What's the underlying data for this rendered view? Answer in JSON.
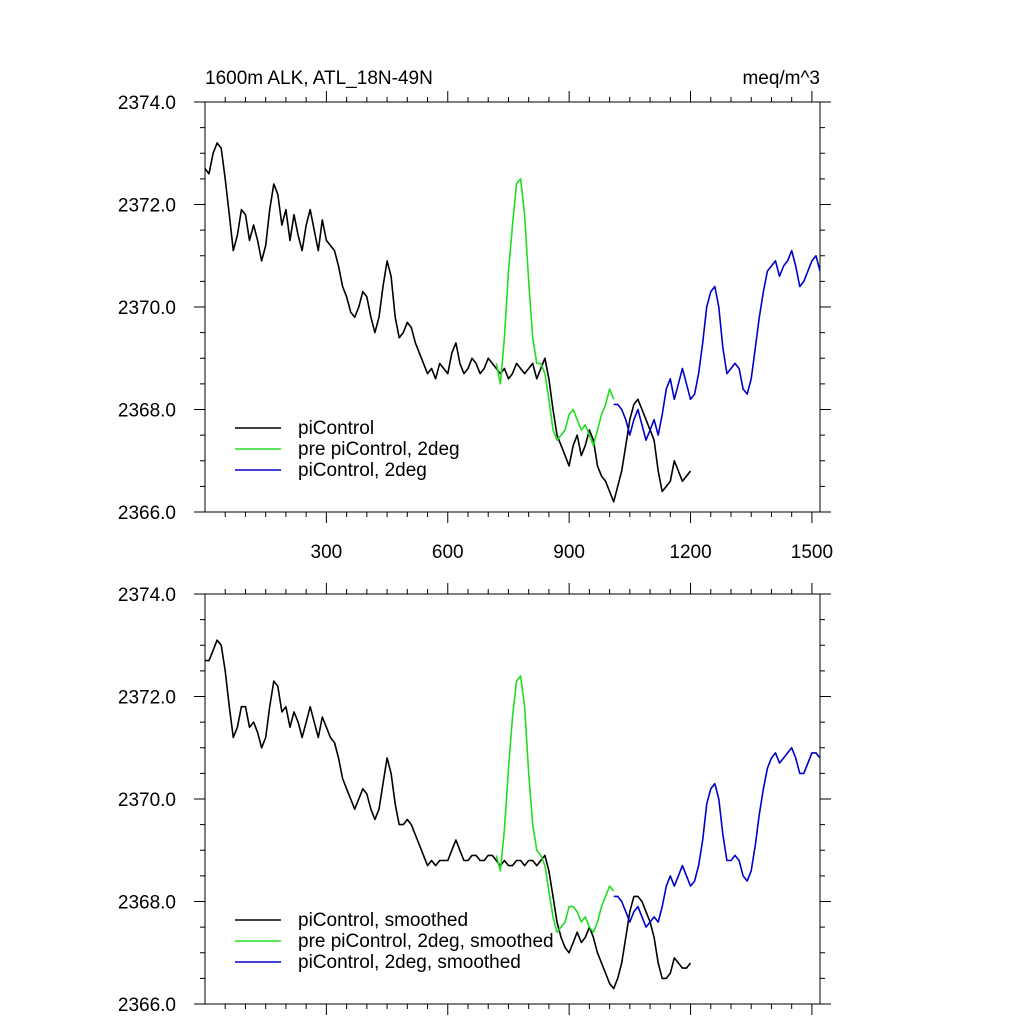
{
  "colors": {
    "piControl": "#000000",
    "pre_piControl_2deg": "#22dd22",
    "piControl_2deg": "#0000cc"
  },
  "chart_data": [
    {
      "type": "line",
      "title_left": "1600m ALK, ATL_18N-49N",
      "title_right": "meq/m^3",
      "xlabel": "",
      "ylabel": "",
      "xlim": [
        0,
        1520
      ],
      "ylim": [
        2366.0,
        2374.0
      ],
      "xticks": [
        300,
        600,
        900,
        1200,
        1500
      ],
      "xtick_labels": [
        "300",
        "600",
        "900",
        "1200",
        "1500"
      ],
      "yticks": [
        2366.0,
        2368.0,
        2370.0,
        2372.0,
        2374.0
      ],
      "ytick_labels": [
        "2366.0",
        "2368.0",
        "2370.0",
        "2372.0",
        "2374.0"
      ],
      "grid": false,
      "legend_position": "bottom-left",
      "series": [
        {
          "name": "piControl",
          "color": "#000000",
          "x": [
            0,
            10,
            20,
            30,
            40,
            50,
            60,
            70,
            80,
            90,
            100,
            110,
            120,
            130,
            140,
            150,
            160,
            170,
            180,
            190,
            200,
            210,
            220,
            230,
            240,
            250,
            260,
            270,
            280,
            290,
            300,
            310,
            320,
            330,
            340,
            350,
            360,
            370,
            380,
            390,
            400,
            410,
            420,
            430,
            440,
            450,
            460,
            470,
            480,
            490,
            500,
            510,
            520,
            530,
            540,
            550,
            560,
            570,
            580,
            590,
            600,
            610,
            620,
            630,
            640,
            650,
            660,
            670,
            680,
            690,
            700,
            710,
            720,
            730,
            740,
            750,
            760,
            770,
            780,
            790,
            800,
            810,
            820,
            830,
            840,
            850,
            860,
            870,
            880,
            890,
            900,
            910,
            920,
            930,
            940,
            950,
            960,
            970,
            980,
            990,
            1000,
            1010,
            1020,
            1030,
            1040,
            1050,
            1060,
            1070,
            1080,
            1090,
            1100,
            1110,
            1120,
            1130,
            1140,
            1150,
            1160,
            1170,
            1180,
            1190,
            1200
          ],
          "y": [
            2372.7,
            2372.6,
            2373.0,
            2373.2,
            2373.1,
            2372.5,
            2371.8,
            2371.1,
            2371.4,
            2371.9,
            2371.8,
            2371.3,
            2371.6,
            2371.3,
            2370.9,
            2371.2,
            2371.9,
            2372.4,
            2372.2,
            2371.6,
            2371.9,
            2371.3,
            2371.8,
            2371.4,
            2371.1,
            2371.6,
            2371.9,
            2371.5,
            2371.1,
            2371.7,
            2371.3,
            2371.2,
            2371.1,
            2370.8,
            2370.4,
            2370.2,
            2369.9,
            2369.8,
            2370.0,
            2370.3,
            2370.2,
            2369.8,
            2369.5,
            2369.8,
            2370.4,
            2370.9,
            2370.6,
            2369.8,
            2369.4,
            2369.5,
            2369.7,
            2369.6,
            2369.3,
            2369.1,
            2368.9,
            2368.7,
            2368.8,
            2368.6,
            2368.9,
            2368.8,
            2368.7,
            2369.1,
            2369.3,
            2368.9,
            2368.7,
            2368.8,
            2369.0,
            2368.9,
            2368.7,
            2368.8,
            2369.0,
            2368.9,
            2368.8,
            2368.7,
            2368.8,
            2368.6,
            2368.7,
            2368.9,
            2368.8,
            2368.7,
            2368.8,
            2368.9,
            2368.6,
            2368.8,
            2369.0,
            2368.6,
            2368.0,
            2367.5,
            2367.3,
            2367.1,
            2366.9,
            2367.3,
            2367.5,
            2367.1,
            2367.3,
            2367.6,
            2367.4,
            2366.9,
            2366.7,
            2366.6,
            2366.4,
            2366.2,
            2366.5,
            2366.8,
            2367.3,
            2367.8,
            2368.1,
            2368.2,
            2368.0,
            2367.8,
            2367.6,
            2367.4,
            2366.8,
            2366.4,
            2366.5,
            2366.6,
            2367.0,
            2366.8,
            2366.6,
            2366.7,
            2366.8
          ]
        },
        {
          "name": "pre piControl, 2deg",
          "color": "#22dd22",
          "x": [
            720,
            730,
            740,
            750,
            760,
            770,
            780,
            790,
            800,
            810,
            820,
            830,
            840,
            850,
            860,
            870,
            880,
            890,
            900,
            910,
            920,
            930,
            940,
            950,
            960,
            970,
            980,
            990,
            1000,
            1010
          ],
          "y": [
            2368.9,
            2368.5,
            2369.4,
            2370.7,
            2371.6,
            2372.4,
            2372.5,
            2371.8,
            2370.5,
            2369.4,
            2368.9,
            2368.9,
            2368.7,
            2368.2,
            2367.6,
            2367.4,
            2367.5,
            2367.6,
            2367.9,
            2368.0,
            2367.8,
            2367.6,
            2367.7,
            2367.5,
            2367.3,
            2367.6,
            2367.9,
            2368.1,
            2368.4,
            2368.2
          ]
        },
        {
          "name": "piControl, 2deg",
          "color": "#0000cc",
          "x": [
            1010,
            1020,
            1030,
            1040,
            1050,
            1060,
            1070,
            1080,
            1090,
            1100,
            1110,
            1120,
            1130,
            1140,
            1150,
            1160,
            1170,
            1180,
            1190,
            1200,
            1210,
            1220,
            1230,
            1240,
            1250,
            1260,
            1270,
            1280,
            1290,
            1300,
            1310,
            1320,
            1330,
            1340,
            1350,
            1360,
            1370,
            1380,
            1390,
            1400,
            1410,
            1420,
            1430,
            1440,
            1450,
            1460,
            1470,
            1480,
            1490,
            1500,
            1510,
            1520
          ],
          "y": [
            2368.1,
            2368.1,
            2368.0,
            2367.8,
            2367.5,
            2367.8,
            2368.0,
            2367.7,
            2367.4,
            2367.6,
            2367.8,
            2367.5,
            2367.9,
            2368.4,
            2368.6,
            2368.2,
            2368.5,
            2368.8,
            2368.5,
            2368.2,
            2368.3,
            2368.7,
            2369.3,
            2370.0,
            2370.3,
            2370.4,
            2370.0,
            2369.2,
            2368.7,
            2368.8,
            2368.9,
            2368.8,
            2368.4,
            2368.3,
            2368.6,
            2369.2,
            2369.8,
            2370.3,
            2370.7,
            2370.8,
            2370.9,
            2370.6,
            2370.8,
            2370.9,
            2371.1,
            2370.8,
            2370.4,
            2370.5,
            2370.7,
            2370.9,
            2371.0,
            2370.7
          ]
        }
      ]
    },
    {
      "type": "line",
      "title_left": "",
      "title_right": "",
      "xlabel": "",
      "ylabel": "",
      "xlim": [
        0,
        1520
      ],
      "ylim": [
        2366.0,
        2374.0
      ],
      "xticks": [
        300,
        600,
        900,
        1200,
        1500
      ],
      "xtick_labels": [],
      "yticks": [
        2366.0,
        2368.0,
        2370.0,
        2372.0,
        2374.0
      ],
      "ytick_labels": [
        "2366.0",
        "2368.0",
        "2370.0",
        "2372.0",
        "2374.0"
      ],
      "grid": false,
      "legend_position": "bottom-left",
      "series": [
        {
          "name": "piControl, smoothed",
          "color": "#000000",
          "x": [
            0,
            10,
            20,
            30,
            40,
            50,
            60,
            70,
            80,
            90,
            100,
            110,
            120,
            130,
            140,
            150,
            160,
            170,
            180,
            190,
            200,
            210,
            220,
            230,
            240,
            250,
            260,
            270,
            280,
            290,
            300,
            310,
            320,
            330,
            340,
            350,
            360,
            370,
            380,
            390,
            400,
            410,
            420,
            430,
            440,
            450,
            460,
            470,
            480,
            490,
            500,
            510,
            520,
            530,
            540,
            550,
            560,
            570,
            580,
            590,
            600,
            610,
            620,
            630,
            640,
            650,
            660,
            670,
            680,
            690,
            700,
            710,
            720,
            730,
            740,
            750,
            760,
            770,
            780,
            790,
            800,
            810,
            820,
            830,
            840,
            850,
            860,
            870,
            880,
            890,
            900,
            910,
            920,
            930,
            940,
            950,
            960,
            970,
            980,
            990,
            1000,
            1010,
            1020,
            1030,
            1040,
            1050,
            1060,
            1070,
            1080,
            1090,
            1100,
            1110,
            1120,
            1130,
            1140,
            1150,
            1160,
            1170,
            1180,
            1190,
            1200
          ],
          "y": [
            2372.7,
            2372.7,
            2372.9,
            2373.1,
            2373.0,
            2372.5,
            2371.8,
            2371.2,
            2371.4,
            2371.8,
            2371.8,
            2371.4,
            2371.5,
            2371.3,
            2371.0,
            2371.2,
            2371.8,
            2372.3,
            2372.2,
            2371.7,
            2371.8,
            2371.4,
            2371.7,
            2371.5,
            2371.2,
            2371.5,
            2371.8,
            2371.5,
            2371.2,
            2371.6,
            2371.4,
            2371.2,
            2371.1,
            2370.8,
            2370.4,
            2370.2,
            2370.0,
            2369.8,
            2370.0,
            2370.2,
            2370.1,
            2369.8,
            2369.6,
            2369.8,
            2370.3,
            2370.8,
            2370.5,
            2369.9,
            2369.5,
            2369.5,
            2369.6,
            2369.5,
            2369.3,
            2369.1,
            2368.9,
            2368.7,
            2368.8,
            2368.7,
            2368.8,
            2368.8,
            2368.8,
            2369.0,
            2369.2,
            2369.0,
            2368.8,
            2368.8,
            2368.9,
            2368.9,
            2368.8,
            2368.8,
            2368.9,
            2368.9,
            2368.8,
            2368.7,
            2368.8,
            2368.7,
            2368.7,
            2368.8,
            2368.8,
            2368.7,
            2368.8,
            2368.8,
            2368.7,
            2368.8,
            2368.9,
            2368.6,
            2368.1,
            2367.6,
            2367.3,
            2367.1,
            2367.0,
            2367.2,
            2367.4,
            2367.2,
            2367.3,
            2367.5,
            2367.3,
            2367.0,
            2366.8,
            2366.6,
            2366.4,
            2366.3,
            2366.5,
            2366.8,
            2367.3,
            2367.8,
            2368.1,
            2368.1,
            2368.0,
            2367.8,
            2367.6,
            2367.3,
            2366.8,
            2366.5,
            2366.5,
            2366.6,
            2366.9,
            2366.8,
            2366.7,
            2366.7,
            2366.8
          ]
        },
        {
          "name": "pre piControl, 2deg, smoothed",
          "color": "#22dd22",
          "x": [
            720,
            730,
            740,
            750,
            760,
            770,
            780,
            790,
            800,
            810,
            820,
            830,
            840,
            850,
            860,
            870,
            880,
            890,
            900,
            910,
            920,
            930,
            940,
            950,
            960,
            970,
            980,
            990,
            1000,
            1010
          ],
          "y": [
            2368.9,
            2368.6,
            2369.4,
            2370.6,
            2371.6,
            2372.3,
            2372.4,
            2371.8,
            2370.5,
            2369.5,
            2369.0,
            2368.9,
            2368.7,
            2368.2,
            2367.7,
            2367.4,
            2367.5,
            2367.6,
            2367.9,
            2367.9,
            2367.8,
            2367.6,
            2367.7,
            2367.5,
            2367.4,
            2367.6,
            2367.9,
            2368.1,
            2368.3,
            2368.2
          ]
        },
        {
          "name": "piControl, 2deg, smoothed",
          "color": "#0000cc",
          "x": [
            1010,
            1020,
            1030,
            1040,
            1050,
            1060,
            1070,
            1080,
            1090,
            1100,
            1110,
            1120,
            1130,
            1140,
            1150,
            1160,
            1170,
            1180,
            1190,
            1200,
            1210,
            1220,
            1230,
            1240,
            1250,
            1260,
            1270,
            1280,
            1290,
            1300,
            1310,
            1320,
            1330,
            1340,
            1350,
            1360,
            1370,
            1380,
            1390,
            1400,
            1410,
            1420,
            1430,
            1440,
            1450,
            1460,
            1470,
            1480,
            1490,
            1500,
            1510,
            1520
          ],
          "y": [
            2368.1,
            2368.1,
            2368.0,
            2367.8,
            2367.6,
            2367.8,
            2367.9,
            2367.7,
            2367.5,
            2367.6,
            2367.7,
            2367.6,
            2367.9,
            2368.3,
            2368.5,
            2368.3,
            2368.5,
            2368.7,
            2368.5,
            2368.3,
            2368.4,
            2368.7,
            2369.2,
            2369.9,
            2370.2,
            2370.3,
            2370.0,
            2369.3,
            2368.8,
            2368.8,
            2368.9,
            2368.8,
            2368.5,
            2368.4,
            2368.6,
            2369.1,
            2369.7,
            2370.2,
            2370.6,
            2370.8,
            2370.9,
            2370.7,
            2370.8,
            2370.9,
            2371.0,
            2370.8,
            2370.5,
            2370.5,
            2370.7,
            2370.9,
            2370.9,
            2370.8
          ]
        }
      ]
    }
  ]
}
